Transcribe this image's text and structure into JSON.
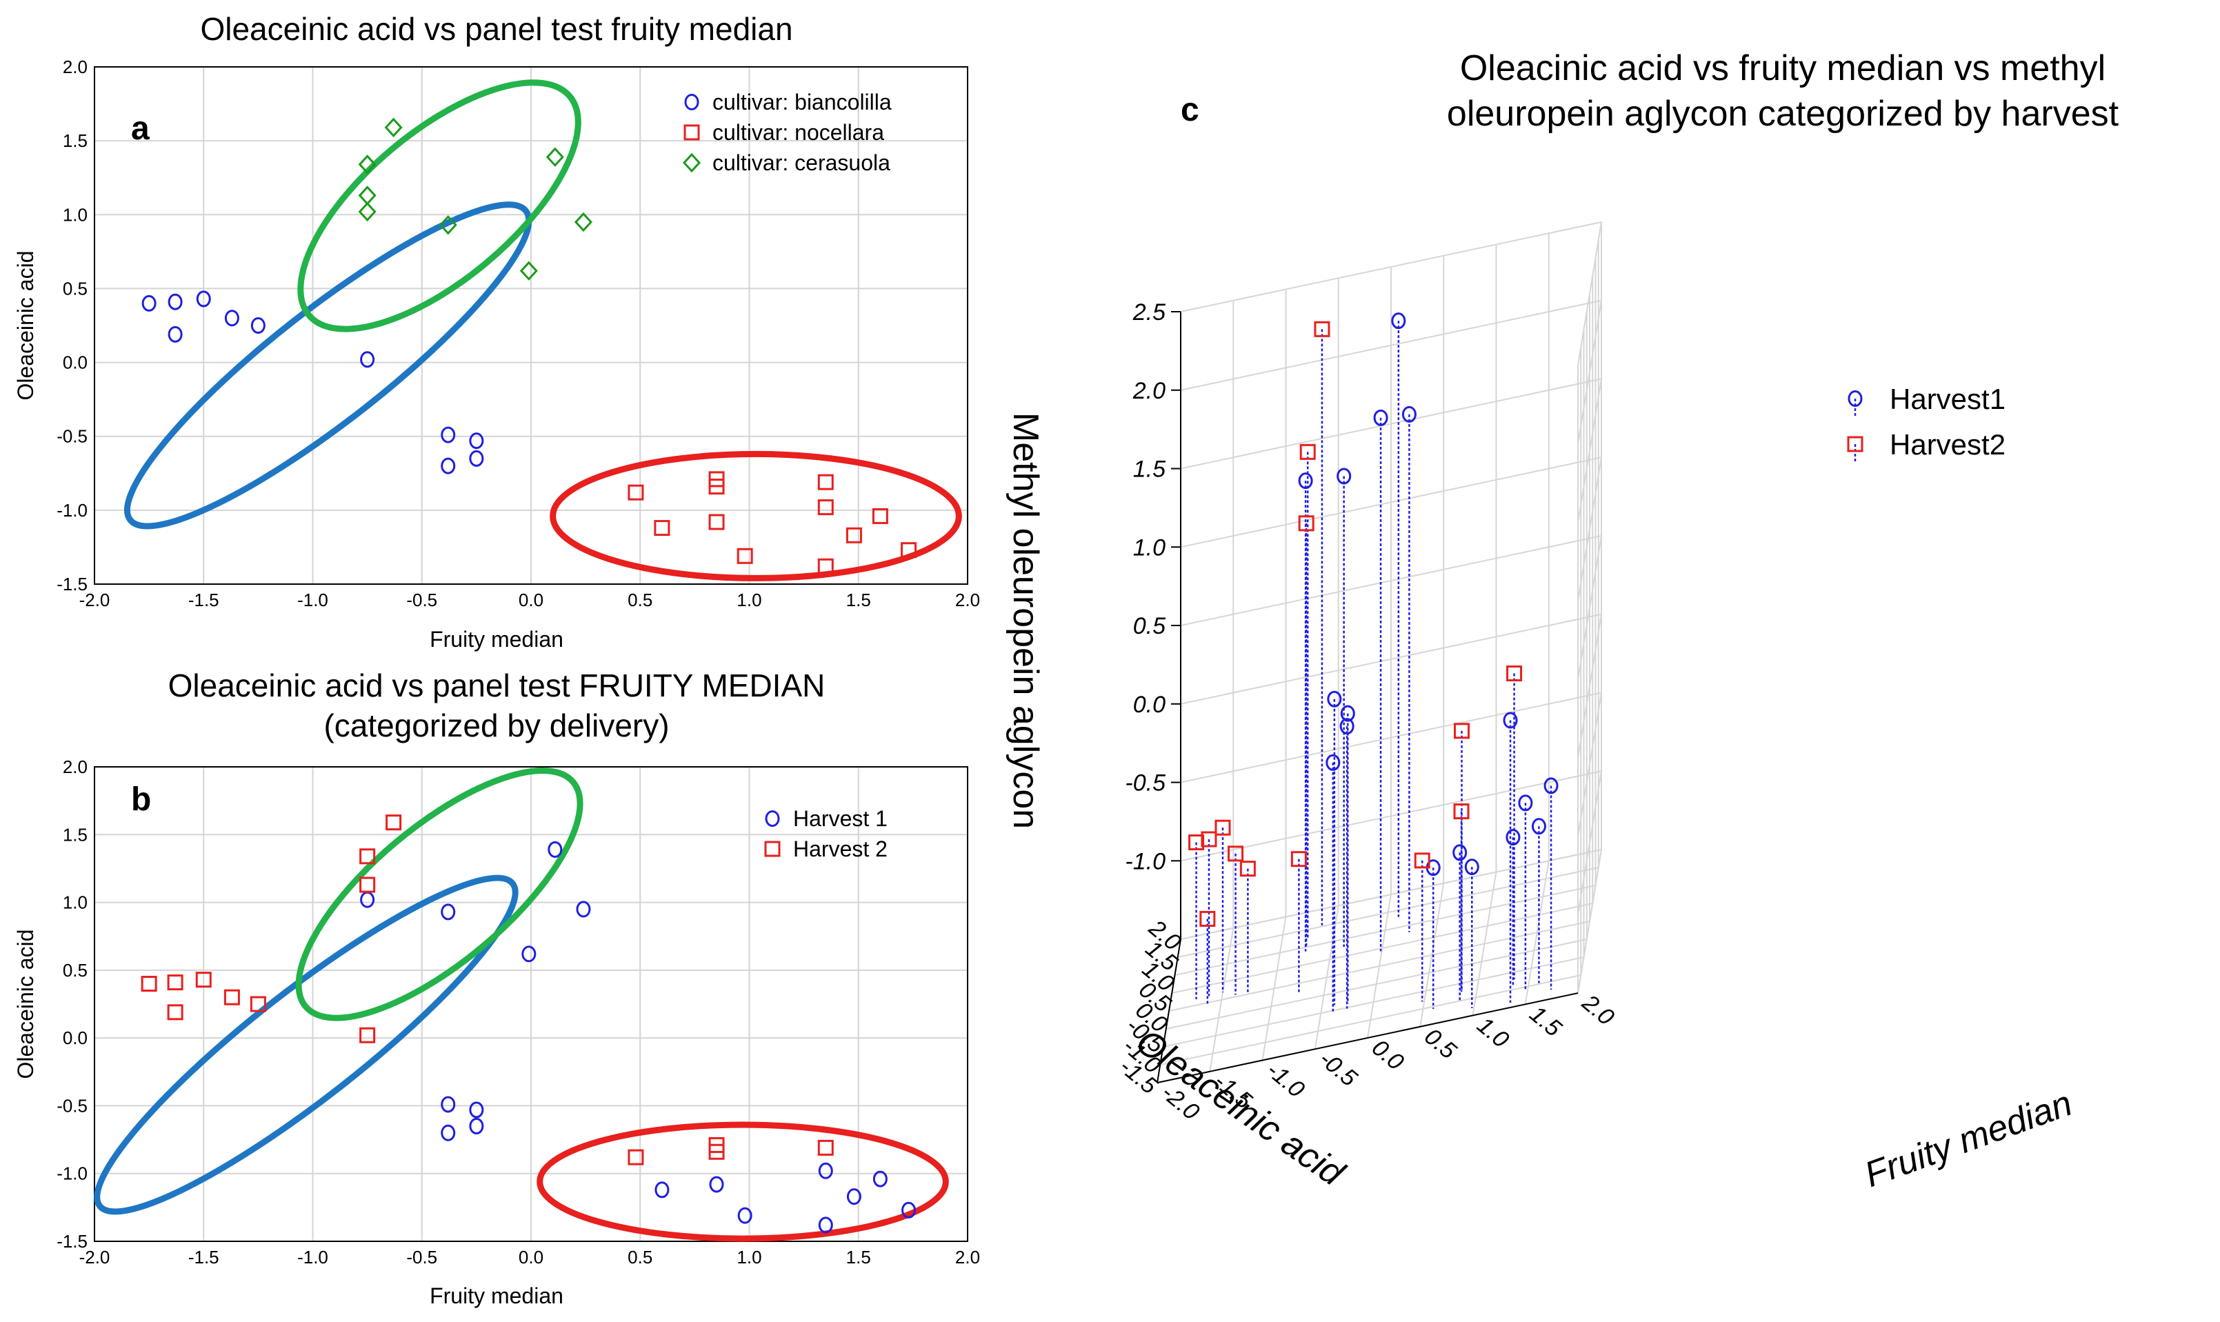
{
  "chart_data": [
    {
      "id": "a",
      "type": "scatter",
      "panel_label": "a",
      "title": "Oleaceinic acid vs panel test fruity median",
      "xlabel": "Fruity median",
      "ylabel": "Oleaceinic acid",
      "xlim": [
        -2.0,
        2.0
      ],
      "ylim": [
        -1.5,
        2.0
      ],
      "xticks": [
        "-2.0",
        "-1.5",
        "-1.0",
        "-0.5",
        "0.0",
        "0.5",
        "1.0",
        "1.5",
        "2.0"
      ],
      "yticks": [
        "-1.5",
        "-1.0",
        "-0.5",
        "0.0",
        "0.5",
        "1.0",
        "1.5",
        "2.0"
      ],
      "grid": true,
      "legend_position": "top-right",
      "series": [
        {
          "name": "cultivar: biancolilla",
          "marker": "circle",
          "color": "#1f1fe0",
          "x": [
            -1.75,
            -1.63,
            -1.5,
            -1.37,
            -1.25,
            -1.63,
            -0.75,
            -0.38,
            -0.25,
            -0.38,
            -0.25
          ],
          "y": [
            0.4,
            0.41,
            0.43,
            0.3,
            0.25,
            0.19,
            0.02,
            -0.49,
            -0.53,
            -0.7,
            -0.65
          ]
        },
        {
          "name": "cultivar: nocellara",
          "marker": "square",
          "color": "#e8201e",
          "x": [
            0.48,
            0.6,
            0.85,
            0.85,
            0.85,
            0.98,
            1.35,
            1.35,
            1.35,
            1.48,
            1.6,
            1.73
          ],
          "y": [
            -0.88,
            -1.12,
            -0.79,
            -0.84,
            -1.08,
            -1.31,
            -0.81,
            -0.98,
            -1.38,
            -1.17,
            -1.04,
            -1.27
          ]
        },
        {
          "name": "cultivar: cerasuola",
          "marker": "diamond",
          "color": "#1c9a1c",
          "x": [
            -0.63,
            -0.75,
            -0.75,
            -0.75,
            -0.38,
            -0.01,
            0.11,
            0.24
          ],
          "y": [
            1.59,
            1.34,
            1.13,
            1.02,
            0.93,
            0.62,
            1.39,
            0.95
          ]
        }
      ],
      "ellipses": [
        {
          "name": "biancolilla-group",
          "color": "#1f77c4",
          "cx": -0.93,
          "cy": -0.02,
          "rx": 1.15,
          "ry": 0.38,
          "angle_deg": -38
        },
        {
          "name": "cerasuola-group",
          "color": "#24b24a",
          "cx": -0.42,
          "cy": 1.06,
          "rx": 0.78,
          "ry": 0.5,
          "angle_deg": -40
        },
        {
          "name": "nocellara-group",
          "color": "#e8201e",
          "cx": 1.03,
          "cy": -1.04,
          "rx": 0.93,
          "ry": 0.42,
          "angle_deg": 0
        }
      ]
    },
    {
      "id": "b",
      "type": "scatter",
      "panel_label": "b",
      "title": "Oleaceinic acid vs panel test FRUITY MEDIAN",
      "subtitle": "(categorized by delivery)",
      "xlabel": "Fruity median",
      "ylabel": "Oleaceinic acid",
      "xlim": [
        -2.0,
        2.0
      ],
      "ylim": [
        -1.5,
        2.0
      ],
      "xticks": [
        "-2.0",
        "-1.5",
        "-1.0",
        "-0.5",
        "0.0",
        "0.5",
        "1.0",
        "1.5",
        "2.0"
      ],
      "yticks": [
        "-1.5",
        "-1.0",
        "-0.5",
        "0.0",
        "0.5",
        "1.0",
        "1.5",
        "2.0"
      ],
      "grid": true,
      "legend_position": "top-right",
      "series": [
        {
          "name": "Harvest 1",
          "marker": "circle",
          "color": "#1f1fe0",
          "x": [
            -0.75,
            -0.38,
            0.11,
            0.24,
            -0.01,
            -0.38,
            -0.25,
            -0.38,
            -0.25,
            0.6,
            0.85,
            0.98,
            1.35,
            1.35,
            1.48,
            1.6,
            1.73
          ],
          "y": [
            1.02,
            0.93,
            1.39,
            0.95,
            0.62,
            -0.49,
            -0.53,
            -0.7,
            -0.65,
            -1.12,
            -1.08,
            -1.31,
            -0.98,
            -1.38,
            -1.17,
            -1.04,
            -1.27
          ]
        },
        {
          "name": "Harvest 2",
          "marker": "square",
          "color": "#e8201e",
          "x": [
            -0.63,
            -0.75,
            -0.75,
            -1.75,
            -1.63,
            -1.5,
            -1.37,
            -1.25,
            -1.63,
            -0.75,
            0.48,
            0.85,
            0.85,
            1.35
          ],
          "y": [
            1.59,
            1.34,
            1.13,
            0.4,
            0.41,
            0.43,
            0.3,
            0.25,
            0.19,
            0.02,
            -0.88,
            -0.79,
            -0.84,
            -0.81
          ]
        }
      ],
      "ellipses": [
        {
          "name": "biancolilla-group",
          "color": "#1f77c4",
          "cx": -1.03,
          "cy": -0.05,
          "rx": 1.2,
          "ry": 0.4,
          "angle_deg": -38
        },
        {
          "name": "cerasuola-group",
          "color": "#24b24a",
          "cx": -0.42,
          "cy": 1.06,
          "rx": 0.8,
          "ry": 0.5,
          "angle_deg": -40
        },
        {
          "name": "nocellara-group",
          "color": "#e8201e",
          "cx": 0.97,
          "cy": -1.06,
          "rx": 0.93,
          "ry": 0.42,
          "angle_deg": 0
        }
      ]
    },
    {
      "id": "c",
      "type": "scatter3d",
      "panel_label": "c",
      "title_lines": [
        "Oleacinic acid vs fruity median vs methyl",
        "oleuropein aglycon categorized by harvest"
      ],
      "xlabel": "Fruity median",
      "ylabel": "Oleaceinic acid",
      "zlabel": "Methyl oleuropein aglycon",
      "xlim": [
        -2.0,
        2.0
      ],
      "ylim": [
        -1.5,
        2.0
      ],
      "zlim": [
        -1.5,
        2.5
      ],
      "xticks": [
        "-2.0",
        "-1.5",
        "-1.0",
        "-0.5",
        "0.0",
        "0.5",
        "1.0",
        "1.5",
        "2.0"
      ],
      "yticks": [
        "-1.5",
        "-1.0",
        "-0.5",
        "0.0",
        "0.5",
        "1.0",
        "1.5",
        "2.0"
      ],
      "zticks": [
        "-1.0",
        "-0.5",
        "0.0",
        "0.5",
        "1.0",
        "1.5",
        "2.0",
        "2.5"
      ],
      "legend_position": "top-right",
      "series": [
        {
          "name": "Harvest1",
          "marker": "circle",
          "color": "#1f1fe0",
          "x": [
            -0.75,
            -0.38,
            0.11,
            0.24,
            -0.01,
            -0.38,
            -0.25,
            -0.38,
            -0.25,
            0.6,
            0.85,
            0.98,
            1.35,
            1.35,
            1.48,
            1.6,
            1.73
          ],
          "y": [
            1.02,
            0.93,
            1.39,
            0.95,
            0.62,
            -0.49,
            -0.53,
            -0.7,
            -0.65,
            -1.12,
            -1.08,
            -1.31,
            -0.98,
            -1.38,
            -1.17,
            -1.04,
            -1.27
          ],
          "z": [
            1.5,
            1.5,
            2.3,
            1.8,
            1.9,
            0.45,
            0.35,
            0.1,
            0.3,
            -0.6,
            -0.55,
            -0.6,
            -0.55,
            0.3,
            -0.3,
            -0.5,
            -0.2
          ]
        },
        {
          "name": "Harvest2",
          "marker": "square",
          "color": "#e8201e",
          "x": [
            -0.63,
            -0.75,
            -0.75,
            -1.75,
            -1.63,
            -1.5,
            -1.37,
            -1.25,
            -1.63,
            -0.75,
            0.48,
            0.85,
            0.85,
            1.35
          ],
          "y": [
            1.59,
            1.34,
            1.13,
            0.4,
            0.41,
            0.43,
            0.3,
            0.25,
            0.19,
            0.02,
            -0.88,
            -0.79,
            -0.84,
            -0.81
          ],
          "z": [
            2.3,
            1.6,
            1.2,
            -0.5,
            -0.5,
            -0.45,
            -0.6,
            -0.7,
            -0.95,
            -0.65,
            -0.6,
            0.15,
            -0.35,
            0.45
          ]
        }
      ]
    }
  ]
}
